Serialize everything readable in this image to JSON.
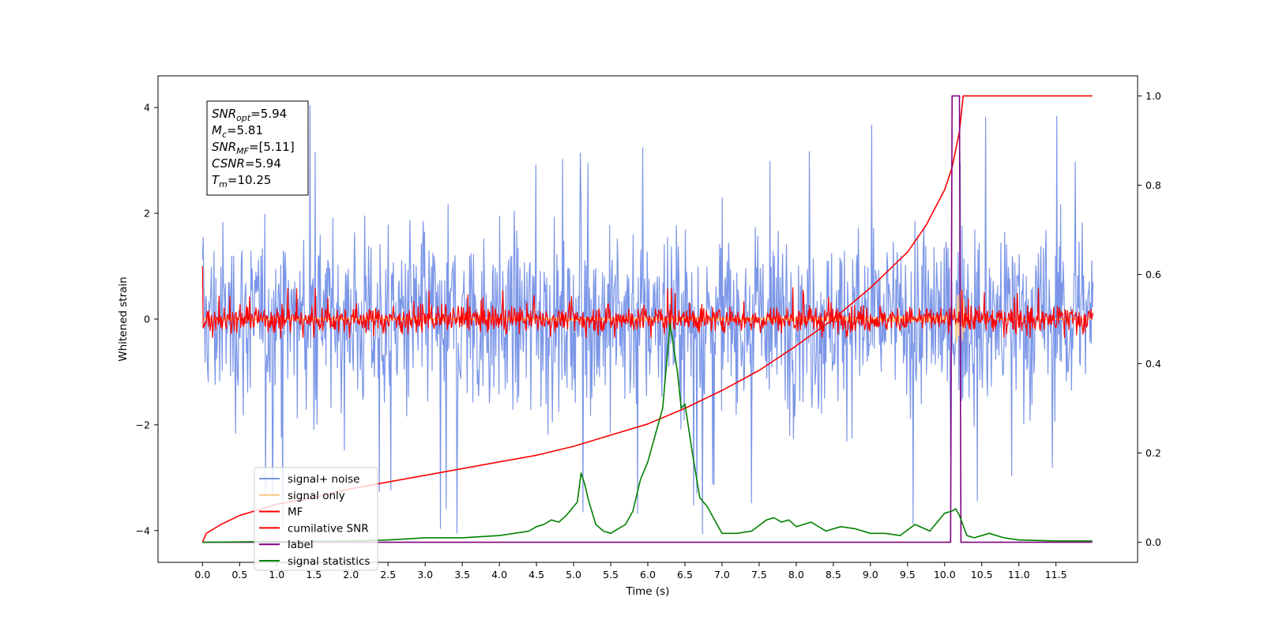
{
  "chart_data": {
    "type": "line",
    "xlabel": "Time (s)",
    "ylabel": "Whitened strain",
    "xlim": [
      -0.6,
      12.6
    ],
    "ylim_left": [
      -4.6,
      4.6
    ],
    "ylim_right": [
      -0.045,
      1.045
    ],
    "x_ticks": [
      "0.0",
      "0.5",
      "1.0",
      "1.5",
      "2.0",
      "2.5",
      "3.0",
      "3.5",
      "4.0",
      "4.5",
      "5.0",
      "5.5",
      "6.0",
      "6.5",
      "7.0",
      "7.5",
      "8.0",
      "8.5",
      "9.0",
      "9.5",
      "10.0",
      "10.5",
      "11.0",
      "11.5"
    ],
    "y_ticks_left": [
      "−4",
      "−2",
      "0",
      "2",
      "4"
    ],
    "y_ticks_right": [
      "0.0",
      "0.2",
      "0.4",
      "0.6",
      "0.8",
      "1.0"
    ],
    "annotation": {
      "lines": [
        {
          "var": "SNR",
          "sub": "opt",
          "value": "=5.94"
        },
        {
          "var": "M",
          "sub": "c",
          "value": "=5.81"
        },
        {
          "var": "SNR",
          "sub": "MF",
          "value": "=[5.11]"
        },
        {
          "var": "CSNR",
          "sub": "",
          "value": "=5.94"
        },
        {
          "var": "T",
          "sub": "m",
          "value": "=10.25"
        }
      ]
    },
    "legend_placement": "lower-left",
    "series": [
      {
        "name": "signal+ noise",
        "color": "#7b96e8",
        "axis": "left",
        "kind": "noise",
        "x_range": [
          0.0,
          12.0
        ],
        "typical_amplitude": 1.2,
        "max_value": 4.1,
        "min_value": -4.1
      },
      {
        "name": "signal only",
        "color": "#f7c98a",
        "axis": "left",
        "kind": "chirp",
        "x_range": [
          0.0,
          12.0
        ],
        "merger_time": 10.25,
        "peak_amplitude": 0.8
      },
      {
        "name": "MF",
        "color": "#ff0000",
        "axis": "left",
        "kind": "noise",
        "x_range": [
          0.0,
          12.0
        ],
        "typical_amplitude": 0.18,
        "max_value": 1.0,
        "min_value": -0.35
      },
      {
        "name": "cumilative SNR",
        "color": "#ff0000",
        "axis": "right",
        "x": [
          0.0,
          0.05,
          0.25,
          0.5,
          1.0,
          1.5,
          2.0,
          2.5,
          3.0,
          3.5,
          4.0,
          4.5,
          5.0,
          5.5,
          6.0,
          6.5,
          7.0,
          7.5,
          8.0,
          8.5,
          9.0,
          9.5,
          9.75,
          10.0,
          10.1,
          10.2,
          10.25,
          11.99
        ],
        "values": [
          0.0,
          0.02,
          0.04,
          0.06,
          0.085,
          0.1,
          0.12,
          0.135,
          0.15,
          0.165,
          0.18,
          0.195,
          0.215,
          0.24,
          0.265,
          0.3,
          0.34,
          0.385,
          0.44,
          0.5,
          0.57,
          0.65,
          0.71,
          0.79,
          0.84,
          0.92,
          1.0,
          1.0
        ]
      },
      {
        "name": "label",
        "color": "#800080",
        "axis": "right",
        "x": [
          0.0,
          10.08,
          10.1,
          10.2,
          10.22,
          11.99
        ],
        "values": [
          0.0,
          0.0,
          1.0,
          1.0,
          0.0,
          0.0
        ]
      },
      {
        "name": "signal statistics",
        "color": "#008000",
        "axis": "right",
        "x": [
          0.0,
          2.0,
          2.5,
          3.0,
          3.5,
          4.0,
          4.2,
          4.4,
          4.5,
          4.6,
          4.7,
          4.8,
          4.9,
          5.0,
          5.05,
          5.1,
          5.15,
          5.2,
          5.3,
          5.4,
          5.5,
          5.6,
          5.7,
          5.8,
          5.9,
          6.0,
          6.1,
          6.2,
          6.3,
          6.4,
          6.45,
          6.5,
          6.6,
          6.7,
          6.8,
          6.9,
          7.0,
          7.2,
          7.4,
          7.6,
          7.7,
          7.8,
          7.9,
          8.0,
          8.2,
          8.4,
          8.6,
          8.8,
          9.0,
          9.2,
          9.4,
          9.6,
          9.8,
          10.0,
          10.1,
          10.15,
          10.2,
          10.3,
          10.4,
          10.6,
          10.8,
          11.0,
          11.5,
          11.99
        ],
        "values": [
          0.0,
          0.003,
          0.005,
          0.01,
          0.01,
          0.015,
          0.02,
          0.025,
          0.035,
          0.04,
          0.05,
          0.045,
          0.06,
          0.08,
          0.09,
          0.155,
          0.13,
          0.095,
          0.04,
          0.025,
          0.02,
          0.03,
          0.04,
          0.07,
          0.14,
          0.18,
          0.24,
          0.3,
          0.49,
          0.38,
          0.3,
          0.31,
          0.2,
          0.1,
          0.08,
          0.05,
          0.02,
          0.02,
          0.025,
          0.05,
          0.055,
          0.045,
          0.05,
          0.035,
          0.045,
          0.025,
          0.035,
          0.03,
          0.02,
          0.02,
          0.015,
          0.04,
          0.025,
          0.065,
          0.07,
          0.075,
          0.06,
          0.015,
          0.01,
          0.02,
          0.01,
          0.005,
          0.003,
          0.003
        ]
      }
    ]
  }
}
